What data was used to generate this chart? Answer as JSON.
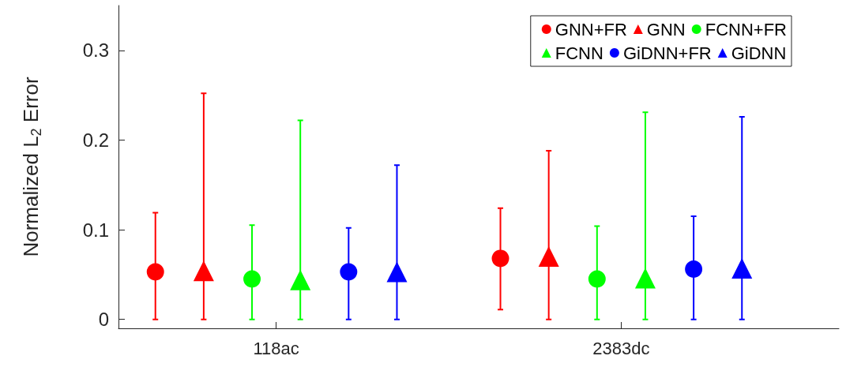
{
  "chart_data": {
    "type": "scatter",
    "ylabel": "Normalized L$_{2}$ Error",
    "categories": [
      "118ac",
      "2383dc"
    ],
    "ylim": [
      -0.01,
      0.35
    ],
    "yticks": [
      0,
      0.1,
      0.2,
      0.3
    ],
    "grid": false,
    "legend": "top right",
    "series": [
      {
        "name": "GNN+FR",
        "color": "#ff0000",
        "marker": "circle",
        "values": [
          0.053,
          0.068
        ],
        "errors": [
          [
            0,
            0.119
          ],
          [
            0.011,
            0.124
          ]
        ]
      },
      {
        "name": "GNN",
        "color": "#ff0000",
        "marker": "triangle",
        "values": [
          0.054,
          0.07
        ],
        "errors": [
          [
            0,
            0.252
          ],
          [
            0,
            0.188
          ]
        ]
      },
      {
        "name": "FCNN+FR",
        "color": "#00ff00",
        "marker": "circle",
        "values": [
          0.045,
          0.045
        ],
        "errors": [
          [
            0,
            0.105
          ],
          [
            0,
            0.104
          ]
        ]
      },
      {
        "name": "FCNN",
        "color": "#00ff00",
        "marker": "triangle",
        "values": [
          0.044,
          0.046
        ],
        "errors": [
          [
            0,
            0.222
          ],
          [
            0,
            0.231
          ]
        ]
      },
      {
        "name": "GiDNN+FR",
        "color": "#0000ff",
        "marker": "circle",
        "values": [
          0.053,
          0.056
        ],
        "errors": [
          [
            0,
            0.102
          ],
          [
            0,
            0.115
          ]
        ]
      },
      {
        "name": "GiDNN",
        "color": "#0000ff",
        "marker": "triangle",
        "values": [
          0.053,
          0.057
        ],
        "errors": [
          [
            0,
            0.172
          ],
          [
            0,
            0.226
          ]
        ]
      }
    ]
  }
}
